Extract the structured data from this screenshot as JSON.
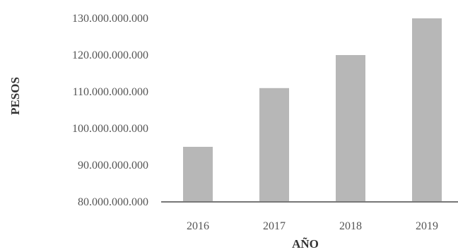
{
  "chart_data": {
    "type": "bar",
    "categories": [
      "2016",
      "2017",
      "2018",
      "2019"
    ],
    "values": [
      95000000000,
      111000000000,
      120000000000,
      130000000000
    ],
    "title": "",
    "xlabel": "AÑO",
    "ylabel": "PESOS",
    "ylim": [
      80000000000,
      130000000000
    ],
    "yticks": [
      "80.000.000.000",
      "90.000.000.000",
      "100.000.000.000",
      "110.000.000.000",
      "120.000.000.000",
      "130.000.000.000"
    ],
    "grid": false,
    "legend": "none",
    "bar_color": "#b7b7b7",
    "axis_color": "#777777"
  }
}
